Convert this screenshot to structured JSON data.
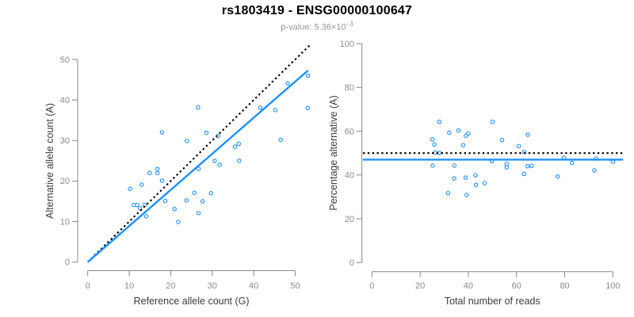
{
  "header": {
    "title": "rs1803419 - ENSG00000100647",
    "subtitle_prefix": "p-value: 5.36×10",
    "subtitle_exponent": "−3"
  },
  "colors": {
    "point_blue": "#1E90FF",
    "fit_line_blue": "#1E90FF",
    "reference_line_black": "#000000",
    "axis_gray": "#878787",
    "tick_label_gray": "#8c8c8c"
  },
  "chart_data": [
    {
      "type": "scatter",
      "panel": "left",
      "xlabel": "Reference allele count (G)",
      "ylabel": "Alternative allele count (A)",
      "xlim": [
        0,
        53.5
      ],
      "ylim": [
        0,
        54
      ],
      "xticks": [
        0,
        10,
        20,
        30,
        40,
        50
      ],
      "yticks": [
        0,
        10,
        20,
        30,
        40,
        50
      ],
      "grid": false,
      "points": [
        [
          10.2,
          18.1
        ],
        [
          11.1,
          14.1
        ],
        [
          11.9,
          14.1
        ],
        [
          12.6,
          13.3
        ],
        [
          13.0,
          19.1
        ],
        [
          13.7,
          14.1
        ],
        [
          14.1,
          11.3
        ],
        [
          14.9,
          22.0
        ],
        [
          16.8,
          23.0
        ],
        [
          16.8,
          22.0
        ],
        [
          17.9,
          20.1
        ],
        [
          17.9,
          32.0
        ],
        [
          18.7,
          15.1
        ],
        [
          20.9,
          13.1
        ],
        [
          21.8,
          9.9
        ],
        [
          23.8,
          15.2
        ],
        [
          23.9,
          29.9
        ],
        [
          25.7,
          17.1
        ],
        [
          26.6,
          38.2
        ],
        [
          26.7,
          23.0
        ],
        [
          26.7,
          12.1
        ],
        [
          27.7,
          15.0
        ],
        [
          28.6,
          31.9
        ],
        [
          29.7,
          17.0
        ],
        [
          30.6,
          25.0
        ],
        [
          31.4,
          31.1
        ],
        [
          31.8,
          24.0
        ],
        [
          35.5,
          28.5
        ],
        [
          36.4,
          29.2
        ],
        [
          36.5,
          25.0
        ],
        [
          41.6,
          38.1
        ],
        [
          45.2,
          37.5
        ],
        [
          46.5,
          30.2
        ],
        [
          48.2,
          44.1
        ],
        [
          53.0,
          38.0
        ],
        [
          53.1,
          46.0
        ]
      ],
      "lines": [
        {
          "name": "identity-line",
          "style": "dotted",
          "color": "#000000",
          "x1": 0,
          "y1": 0,
          "x2": 53.5,
          "y2": 53.5
        },
        {
          "name": "fit-line",
          "style": "solid",
          "color": "#1E90FF",
          "x1": 0,
          "y1": 0,
          "x2": 53.1,
          "y2": 47.3
        }
      ]
    },
    {
      "type": "scatter",
      "panel": "right",
      "xlabel": "Total number of reads",
      "ylabel": "Percentage alternative (A)",
      "xlim": [
        -4,
        104.5
      ],
      "ylim": [
        0,
        100
      ],
      "xticks": [
        0,
        20,
        40,
        60,
        80,
        100
      ],
      "yticks": [
        0,
        20,
        40,
        60,
        80,
        100
      ],
      "grid": false,
      "points": [
        [
          25.1,
          56.2
        ],
        [
          25.2,
          44.3
        ],
        [
          25.9,
          53.9
        ],
        [
          26.3,
          50.3
        ],
        [
          28.0,
          50.1
        ],
        [
          28.0,
          64.3
        ],
        [
          31.6,
          31.7
        ],
        [
          32.1,
          59.3
        ],
        [
          34.1,
          38.4
        ],
        [
          34.2,
          44.3
        ],
        [
          35.9,
          60.3
        ],
        [
          37.9,
          53.6
        ],
        [
          38.9,
          38.8
        ],
        [
          39.0,
          57.9
        ],
        [
          39.3,
          30.9
        ],
        [
          40.0,
          59.0
        ],
        [
          43.0,
          39.9
        ],
        [
          43.2,
          35.5
        ],
        [
          46.8,
          36.3
        ],
        [
          49.7,
          46.3
        ],
        [
          50.1,
          64.3
        ],
        [
          54.0,
          55.9
        ],
        [
          55.9,
          45.1
        ],
        [
          55.9,
          43.5
        ],
        [
          61.0,
          53.2
        ],
        [
          63.1,
          40.5
        ],
        [
          63.2,
          50.5
        ],
        [
          64.6,
          44.0
        ],
        [
          64.7,
          58.4
        ],
        [
          66.3,
          44.2
        ],
        [
          77.1,
          39.3
        ],
        [
          79.7,
          47.9
        ],
        [
          83.0,
          45.5
        ],
        [
          92.3,
          42.1
        ],
        [
          92.9,
          47.5
        ],
        [
          100.0,
          46.1
        ]
      ],
      "lines": [
        {
          "name": "expected-50pct-line",
          "style": "dotted",
          "color": "#000000",
          "x1": -3.7,
          "y1": 50,
          "x2": 104.2,
          "y2": 50
        },
        {
          "name": "mean-pct-line",
          "style": "solid",
          "color": "#1E90FF",
          "x1": -3.7,
          "y1": 47,
          "x2": 104.2,
          "y2": 47
        }
      ]
    }
  ]
}
